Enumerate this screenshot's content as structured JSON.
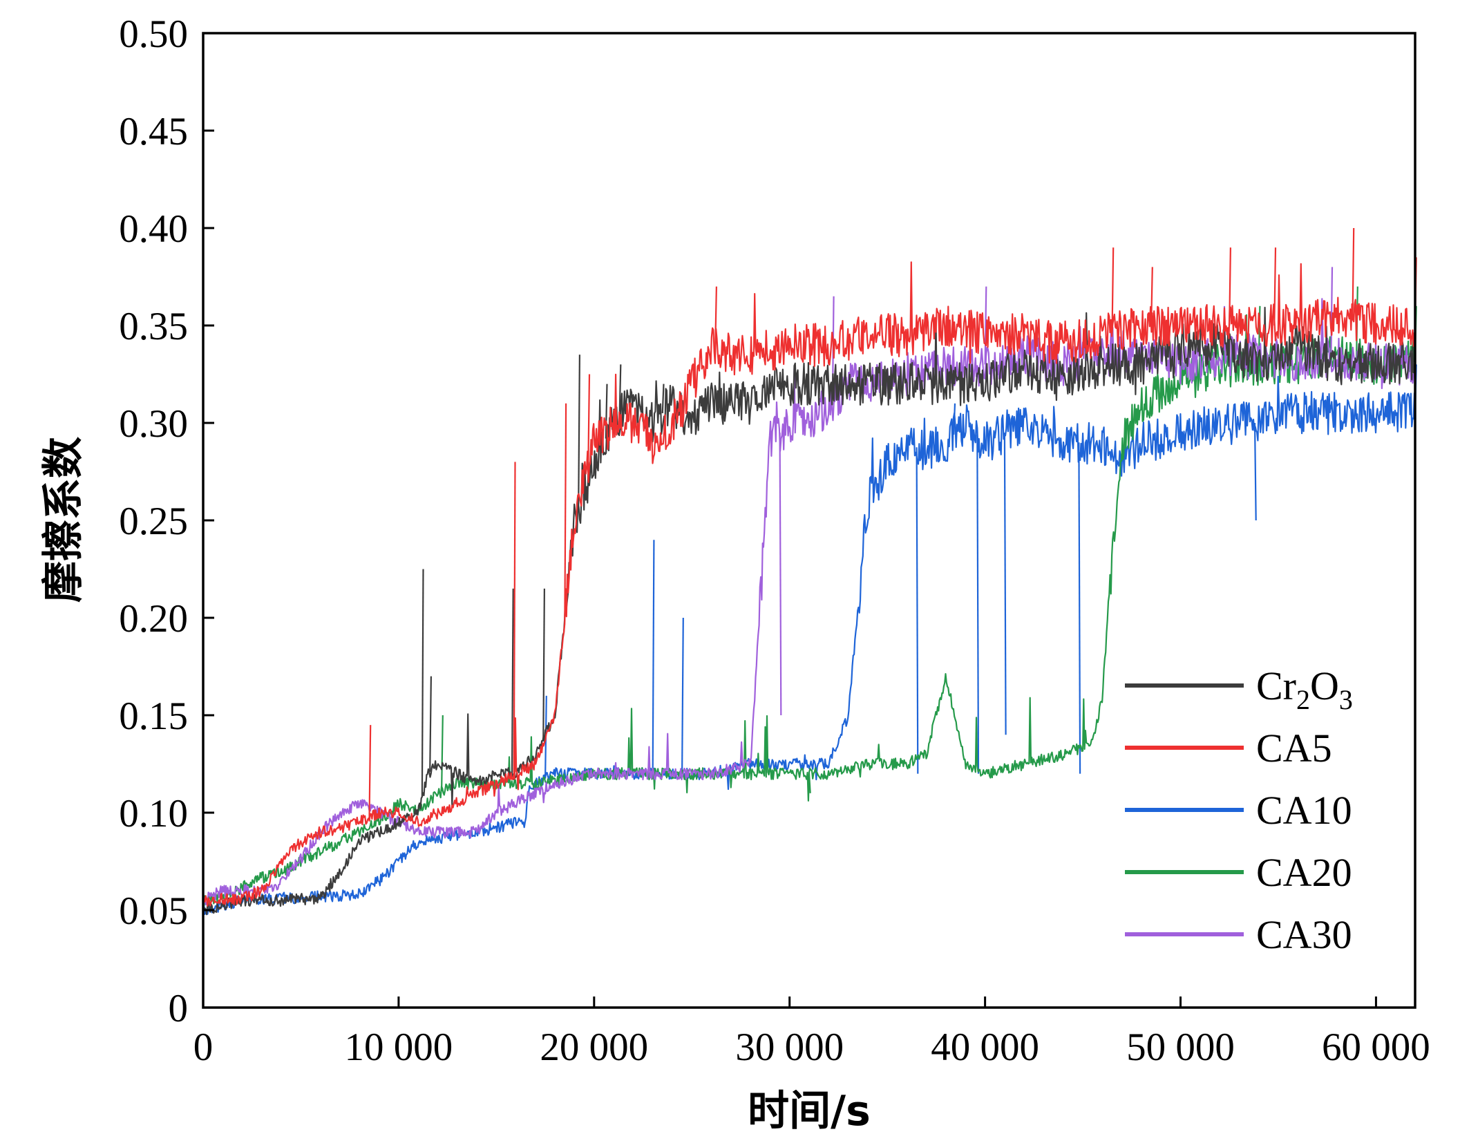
{
  "chart_data": {
    "type": "line",
    "title": "",
    "xlabel": "时间/s",
    "ylabel": "摩擦系数",
    "xlim": [
      0,
      62000
    ],
    "ylim": [
      0,
      0.5
    ],
    "xticks": [
      0,
      10000,
      20000,
      30000,
      40000,
      50000,
      60000
    ],
    "xtick_labels": [
      "0",
      "10 000",
      "20 000",
      "30 000",
      "40 000",
      "50 000",
      "60 000"
    ],
    "yticks": [
      0,
      0.05,
      0.1,
      0.15,
      0.2,
      0.25,
      0.3,
      0.35,
      0.4,
      0.45,
      0.5
    ],
    "ytick_labels": [
      "0",
      "0.05",
      "0.10",
      "0.15",
      "0.20",
      "0.25",
      "0.30",
      "0.35",
      "0.40",
      "0.45",
      "0.50"
    ],
    "grid": false,
    "legend_position": "bottom-right",
    "series": [
      {
        "name": "Cr2O3",
        "legend_main": "Cr",
        "legend_sub1": "2",
        "legend_mid": "O",
        "legend_sub2": "3",
        "color": "#3c3c3c",
        "x": [
          0,
          2000,
          4000,
          6000,
          7000,
          8000,
          9000,
          10000,
          11000,
          11500,
          12000,
          13000,
          14000,
          15000,
          16000,
          17000,
          18000,
          19000,
          20000,
          21000,
          22000,
          23000,
          24000,
          25000,
          26000,
          27000,
          28000,
          29000,
          30000,
          32000,
          34000,
          36000,
          38000,
          40000,
          42000,
          44000,
          46000,
          48000,
          50000,
          52000,
          54000,
          56000,
          58000,
          60000,
          62000
        ],
        "y": [
          0.05,
          0.055,
          0.055,
          0.056,
          0.07,
          0.085,
          0.09,
          0.095,
          0.1,
          0.12,
          0.125,
          0.12,
          0.115,
          0.12,
          0.12,
          0.13,
          0.15,
          0.25,
          0.28,
          0.3,
          0.31,
          0.3,
          0.31,
          0.3,
          0.31,
          0.31,
          0.31,
          0.32,
          0.32,
          0.32,
          0.32,
          0.32,
          0.32,
          0.32,
          0.33,
          0.32,
          0.33,
          0.33,
          0.34,
          0.34,
          0.33,
          0.34,
          0.33,
          0.33,
          0.33
        ],
        "spikes": [
          [
            11200,
            0.225
          ],
          [
            11600,
            0.17
          ],
          [
            15800,
            0.215
          ],
          [
            17400,
            0.215
          ],
          [
            19200,
            0.335
          ],
          [
            20600,
            0.32
          ],
          [
            21300,
            0.33
          ],
          [
            23500,
            0.32
          ]
        ]
      },
      {
        "name": "CA5",
        "color": "#ee3030",
        "x": [
          0,
          2000,
          3000,
          4000,
          5000,
          6000,
          7000,
          8000,
          9000,
          10000,
          11000,
          12000,
          13000,
          14000,
          15000,
          16000,
          17000,
          18000,
          19000,
          20000,
          21000,
          22000,
          23000,
          24000,
          25000,
          26000,
          27000,
          28000,
          30000,
          32000,
          34000,
          36000,
          38000,
          40000,
          42000,
          44000,
          46000,
          48000,
          50000,
          52000,
          54000,
          56000,
          58000,
          60000,
          62000
        ],
        "y": [
          0.055,
          0.056,
          0.06,
          0.075,
          0.085,
          0.09,
          0.092,
          0.095,
          0.1,
          0.1,
          0.095,
          0.1,
          0.105,
          0.11,
          0.115,
          0.12,
          0.125,
          0.15,
          0.25,
          0.29,
          0.3,
          0.3,
          0.29,
          0.3,
          0.32,
          0.34,
          0.335,
          0.335,
          0.34,
          0.34,
          0.345,
          0.345,
          0.35,
          0.345,
          0.345,
          0.34,
          0.345,
          0.35,
          0.35,
          0.35,
          0.35,
          0.35,
          0.355,
          0.35,
          0.35
        ],
        "spikes": [
          [
            8500,
            0.145
          ],
          [
            15900,
            0.28
          ],
          [
            18500,
            0.31
          ],
          [
            19700,
            0.325
          ],
          [
            26200,
            0.37
          ],
          [
            46500,
            0.39
          ],
          [
            48500,
            0.38
          ],
          [
            52500,
            0.39
          ],
          [
            54800,
            0.39
          ],
          [
            58800,
            0.4
          ],
          [
            62000,
            0.385
          ]
        ]
      },
      {
        "name": "CA10",
        "color": "#1e64d8",
        "x": [
          0,
          2000,
          4000,
          6000,
          8000,
          9000,
          10000,
          11000,
          12000,
          14000,
          16000,
          16500,
          16600,
          17000,
          18000,
          20000,
          22000,
          24000,
          26000,
          28000,
          30000,
          32000,
          33000,
          34000,
          35000,
          36000,
          37000,
          38000,
          39000,
          40000,
          42000,
          44000,
          46000,
          47000,
          48000,
          50000,
          52000,
          54000,
          56000,
          58000,
          60000,
          62000
        ],
        "y": [
          0.05,
          0.055,
          0.056,
          0.057,
          0.058,
          0.065,
          0.075,
          0.085,
          0.087,
          0.09,
          0.095,
          0.095,
          0.11,
          0.115,
          0.12,
          0.12,
          0.12,
          0.12,
          0.12,
          0.125,
          0.125,
          0.125,
          0.15,
          0.26,
          0.28,
          0.29,
          0.285,
          0.29,
          0.3,
          0.29,
          0.3,
          0.29,
          0.29,
          0.28,
          0.29,
          0.295,
          0.3,
          0.3,
          0.305,
          0.305,
          0.305,
          0.305
        ],
        "spikes": [
          [
            17500,
            0.16
          ],
          [
            23000,
            0.24
          ],
          [
            24500,
            0.2
          ],
          [
            36500,
            0.12
          ],
          [
            38400,
            0.31
          ],
          [
            39600,
            0.12
          ],
          [
            41000,
            0.14
          ],
          [
            41600,
            0.3
          ],
          [
            44800,
            0.12
          ],
          [
            53800,
            0.25
          ],
          [
            62000,
            0.33
          ]
        ]
      },
      {
        "name": "CA20",
        "color": "#259a4a",
        "x": [
          0,
          1500,
          2500,
          4000,
          6000,
          8000,
          9500,
          10000,
          11000,
          12000,
          13000,
          15000,
          17000,
          20000,
          25000,
          30000,
          31000,
          32000,
          34000,
          36000,
          37000,
          38000,
          39000,
          40000,
          42000,
          44000,
          45500,
          46000,
          46500,
          47000,
          48000,
          50000,
          52000,
          54000,
          56000,
          58000,
          60000,
          62000
        ],
        "y": [
          0.055,
          0.058,
          0.065,
          0.07,
          0.08,
          0.09,
          0.1,
          0.105,
          0.1,
          0.11,
          0.115,
          0.115,
          0.115,
          0.12,
          0.12,
          0.12,
          0.12,
          0.12,
          0.125,
          0.125,
          0.13,
          0.17,
          0.125,
          0.12,
          0.125,
          0.13,
          0.135,
          0.16,
          0.23,
          0.29,
          0.31,
          0.32,
          0.33,
          0.33,
          0.33,
          0.335,
          0.33,
          0.335
        ],
        "spikes": [
          [
            12200,
            0.15
          ],
          [
            31000,
            0.11
          ],
          [
            54000,
            0.36
          ],
          [
            59000,
            0.37
          ],
          [
            62000,
            0.36
          ]
        ]
      },
      {
        "name": "CA30",
        "color": "#a060dc",
        "x": [
          0,
          1000,
          2500,
          3500,
          4500,
          6000,
          7000,
          8000,
          9000,
          10000,
          11000,
          12000,
          13000,
          14000,
          15000,
          16000,
          17000,
          18000,
          20000,
          22000,
          24000,
          26000,
          28000,
          29000,
          30000,
          31000,
          32000,
          33000,
          34000,
          36000,
          38000,
          40000,
          42000,
          44000,
          46000,
          48000,
          50000,
          52000,
          54000,
          56000,
          58000,
          60000,
          62000
        ],
        "y": [
          0.055,
          0.06,
          0.06,
          0.06,
          0.07,
          0.09,
          0.1,
          0.105,
          0.1,
          0.095,
          0.09,
          0.09,
          0.09,
          0.09,
          0.1,
          0.105,
          0.11,
          0.115,
          0.12,
          0.12,
          0.12,
          0.12,
          0.125,
          0.29,
          0.3,
          0.3,
          0.31,
          0.32,
          0.32,
          0.325,
          0.33,
          0.33,
          0.335,
          0.33,
          0.335,
          0.335,
          0.33,
          0.335,
          0.335,
          0.33,
          0.335,
          0.33,
          0.33
        ],
        "spikes": [
          [
            29500,
            0.15
          ],
          [
            32200,
            0.365
          ],
          [
            40000,
            0.37
          ],
          [
            57700,
            0.38
          ]
        ]
      }
    ]
  }
}
